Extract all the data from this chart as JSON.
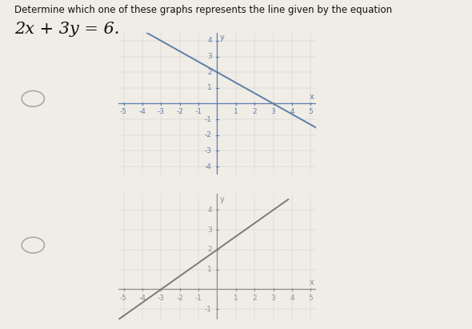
{
  "title_line1": "Determine which one of these graphs represents the line given by the equation",
  "title_line2": "2x + 3y = 6.",
  "bg_color": "#f0ece6",
  "graph1": {
    "xlim": [
      -5.3,
      5.3
    ],
    "ylim": [
      -4.5,
      4.5
    ],
    "xticks": [
      -5,
      -4,
      -3,
      -2,
      -1,
      1,
      2,
      3,
      4,
      5
    ],
    "yticks": [
      -4,
      -3,
      -2,
      -1,
      1,
      2,
      3,
      4
    ],
    "slope": -0.6667,
    "intercept": 2.0,
    "line_color": "#5b7fa6",
    "line_width": 1.4
  },
  "graph2": {
    "xlim": [
      -5.3,
      5.3
    ],
    "ylim": [
      -1.5,
      4.8
    ],
    "xticks": [
      -5,
      -4,
      -3,
      -2,
      -1,
      1,
      2,
      3,
      4,
      5
    ],
    "yticks": [
      -1,
      1,
      2,
      3,
      4
    ],
    "slope": 0.6667,
    "intercept": 2.0,
    "line_color": "#7a7a7a",
    "line_width": 1.4
  },
  "axis_color_g1": "#6080b0",
  "axis_color_g2": "#909090",
  "tick_label_color_g1": "#6080b0",
  "tick_label_color_g2": "#909090",
  "tick_fontsize": 6.5,
  "radio_color": "#aaaaaa",
  "bg_color_plot": "#f0ece6"
}
